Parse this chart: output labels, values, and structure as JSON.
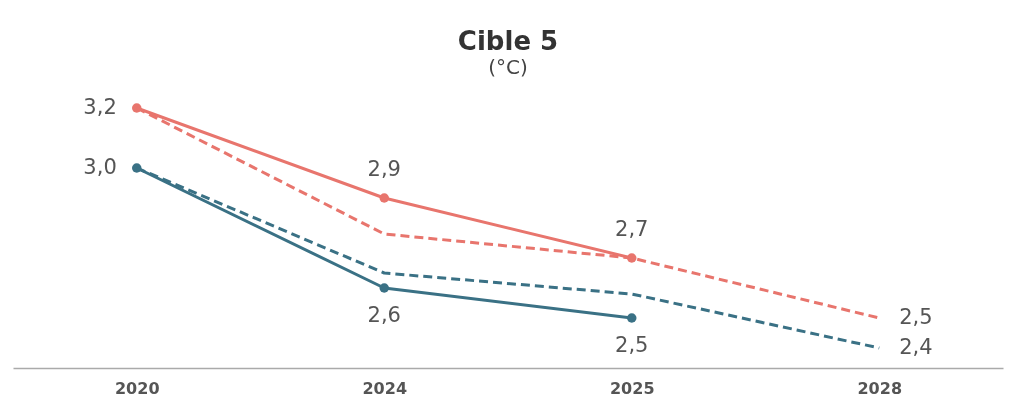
{
  "chart_data": {
    "type": "line",
    "title": "Cible 5",
    "subtitle": "(°C)",
    "categories": [
      "2020",
      "2024",
      "2025",
      "2028"
    ],
    "tick_labels": "x",
    "grid": false,
    "series": [
      {
        "color": "#e8756d",
        "line_style": "solid",
        "marker": "circle",
        "values": [
          3.2,
          2.9,
          2.7,
          null
        ],
        "value_labels": [
          "3,2",
          "2,9",
          "2,7",
          null
        ]
      },
      {
        "color": "#e8756d",
        "line_style": "dashed",
        "marker": "none",
        "values": [
          3.2,
          2.78,
          2.7,
          2.5
        ],
        "value_labels": [
          null,
          null,
          null,
          "2,5"
        ]
      },
      {
        "color": "#3a7185",
        "line_style": "solid",
        "marker": "circle",
        "values": [
          3.0,
          2.6,
          2.5,
          null
        ],
        "value_labels": [
          "3,0",
          "2,6",
          "2,5",
          null
        ]
      },
      {
        "color": "#3a7185",
        "line_style": "dashed",
        "marker": "none",
        "values": [
          3.0,
          2.65,
          2.58,
          2.4
        ],
        "value_labels": [
          null,
          null,
          null,
          "2,4"
        ]
      }
    ]
  }
}
